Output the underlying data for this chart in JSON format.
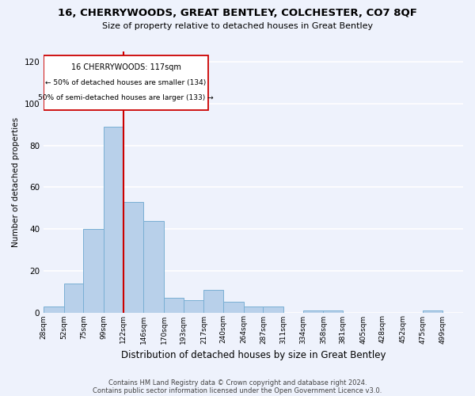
{
  "title1": "16, CHERRYWOODS, GREAT BENTLEY, COLCHESTER, CO7 8QF",
  "title2": "Size of property relative to detached houses in Great Bentley",
  "xlabel": "Distribution of detached houses by size in Great Bentley",
  "ylabel": "Number of detached properties",
  "footnote1": "Contains HM Land Registry data © Crown copyright and database right 2024.",
  "footnote2": "Contains public sector information licensed under the Open Government Licence v3.0.",
  "bar_labels": [
    "28sqm",
    "52sqm",
    "75sqm",
    "99sqm",
    "122sqm",
    "146sqm",
    "170sqm",
    "193sqm",
    "217sqm",
    "240sqm",
    "264sqm",
    "287sqm",
    "311sqm",
    "334sqm",
    "358sqm",
    "381sqm",
    "405sqm",
    "428sqm",
    "452sqm",
    "475sqm",
    "499sqm"
  ],
  "bar_values": [
    3,
    14,
    40,
    89,
    53,
    44,
    7,
    6,
    11,
    5,
    3,
    3,
    0,
    1,
    1,
    0,
    0,
    0,
    0,
    1,
    0
  ],
  "bar_color": "#b8d0ea",
  "bar_edge_color": "#7aafd4",
  "property_label": "16 CHERRYWOODS: 117sqm",
  "annotation_line1": "← 50% of detached houses are smaller (134)",
  "annotation_line2": "50% of semi-detached houses are larger (133) →",
  "vline_color": "#cc0000",
  "box_color": "#cc0000",
  "ylim": [
    0,
    125
  ],
  "yticks": [
    0,
    20,
    40,
    60,
    80,
    100,
    120
  ],
  "background_color": "#eef2fc",
  "plot_bg_color": "#eef2fc",
  "grid_color": "#ffffff",
  "bin_edges": [
    28,
    52,
    75,
    99,
    122,
    146,
    170,
    193,
    217,
    240,
    264,
    287,
    311,
    334,
    358,
    381,
    405,
    428,
    452,
    475,
    499,
    523
  ]
}
